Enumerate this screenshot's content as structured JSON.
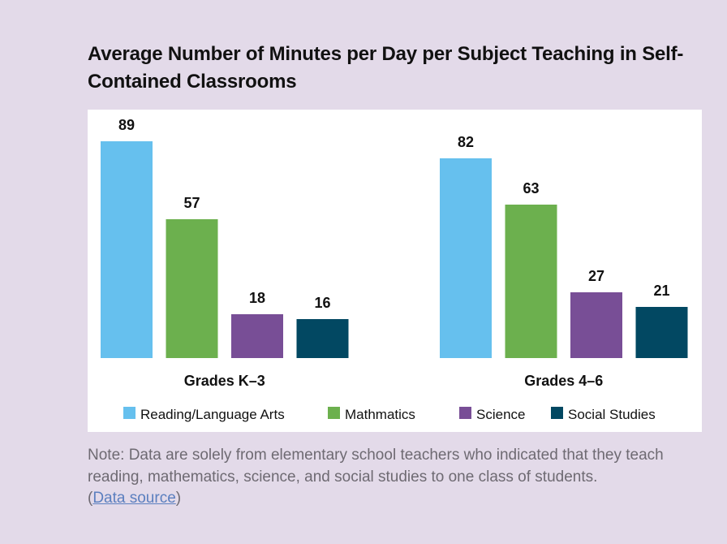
{
  "chart_data": {
    "type": "bar",
    "title": "Average Number of Minutes per Day per Subject Teaching in Self-Contained Classrooms",
    "categories": [
      "Grades K–3",
      "Grades 4–6"
    ],
    "series": [
      {
        "name": "Reading/Language Arts",
        "color": "#66c0ee",
        "values": [
          89,
          82
        ]
      },
      {
        "name": "Mathmatics",
        "color": "#6cb04e",
        "values": [
          57,
          63
        ]
      },
      {
        "name": "Science",
        "color": "#784e96",
        "values": [
          18,
          27
        ]
      },
      {
        "name": "Social Studies",
        "color": "#024862",
        "values": [
          16,
          21
        ]
      }
    ],
    "ylim": [
      0,
      89
    ],
    "grid": false,
    "legend": "bottom",
    "data_labels": true
  },
  "note": {
    "text": "Note: Data are solely from elementary school teachers who indicated that they teach reading, mathematics, science, and social studies to one class of students.",
    "link_prefix": "(",
    "link_label": "Data source",
    "link_suffix": ")"
  }
}
